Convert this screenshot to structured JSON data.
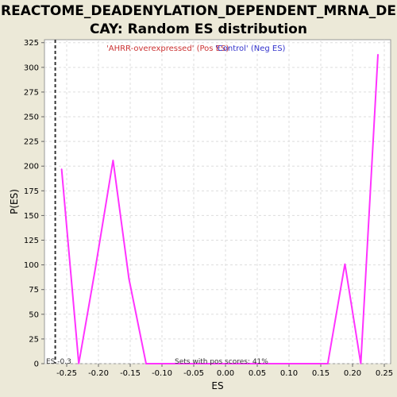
{
  "chart_data": {
    "type": "line",
    "title_lines": [
      "REACTOME_DEADENYLATION_DEPENDENT_MRNA_DE",
      "CAY: Random ES distribution"
    ],
    "xlabel": "ES",
    "ylabel": "P(ES)",
    "xlim": [
      -0.285,
      0.26
    ],
    "ylim": [
      0,
      328
    ],
    "x_ticks": [
      -0.25,
      -0.2,
      -0.15,
      -0.1,
      -0.05,
      0.0,
      0.05,
      0.1,
      0.15,
      0.2,
      0.25
    ],
    "x_tick_labels": [
      "-0.25",
      "-0.20",
      "-0.15",
      "-0.10",
      "-0.05",
      "0.00",
      "0.05",
      "0.10",
      "0.15",
      "0.20",
      "0.25"
    ],
    "y_ticks": [
      0,
      25,
      50,
      75,
      100,
      125,
      150,
      175,
      200,
      225,
      250,
      275,
      300,
      325
    ],
    "y_tick_labels": [
      "0",
      "25",
      "50",
      "75",
      "100",
      "125",
      "150",
      "175",
      "200",
      "225",
      "250",
      "275",
      "300",
      "325"
    ],
    "grid": true,
    "legend": {
      "pos_label": "'AHRR-overexpressed' (Pos ES)",
      "neg_label": "'Control' (Neg ES)",
      "placement": "top-center"
    },
    "series": [
      {
        "color": "#ff33ff",
        "x": [
          -0.258,
          -0.231,
          -0.205,
          -0.177,
          -0.152,
          -0.125,
          0.161,
          0.188,
          0.213,
          0.24
        ],
        "y": [
          197,
          0,
          96,
          206,
          86,
          0,
          0,
          101,
          0,
          313
        ]
      }
    ],
    "marker_line": {
      "x": -0.268,
      "label": "ES -0.3"
    },
    "annotation": "Sets with pos scores: 41%"
  }
}
